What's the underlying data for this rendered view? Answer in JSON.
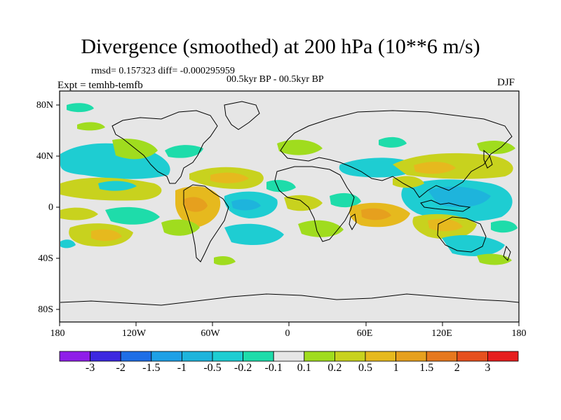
{
  "title": "Divergence (smoothed) at 200 hPa (10**6 m/s)",
  "stats": "rmsd= 0.157323 diff= -0.000295959",
  "period": "00.5kyr BP - 00.5kyr BP",
  "experiment": "Expt = temhb-temfb",
  "season": "DJF",
  "lat_labels": [
    "80N",
    "40N",
    "0",
    "40S",
    "80S"
  ],
  "lon_labels": [
    "180",
    "120W",
    "60W",
    "0",
    "60E",
    "120E",
    "180"
  ],
  "colorbar": {
    "labels": [
      "-3",
      "-2",
      "-1.5",
      "-1",
      "-0.5",
      "-0.2",
      "-0.1",
      "0.1",
      "0.2",
      "0.5",
      "1",
      "1.5",
      "2",
      "3"
    ],
    "colors": [
      "#8f1ee8",
      "#3c28e0",
      "#1e6ee6",
      "#1ea0e6",
      "#1eb4dc",
      "#1ecdd2",
      "#1edcaa",
      "#e6e6e6",
      "#a0dc1e",
      "#c8d21e",
      "#e6b91e",
      "#e6a01e",
      "#e6781e",
      "#e6501e",
      "#e61e1e"
    ]
  },
  "map_colors": {
    "background": "#e6e6e6",
    "coast": "#000000",
    "lightgreen": "#a0dc1e",
    "yellowgreen": "#c8d21e",
    "orange": "#e6b91e",
    "cyan": "#1ecdd2",
    "teal": "#1edcaa",
    "blue": "#1eb4dc"
  }
}
